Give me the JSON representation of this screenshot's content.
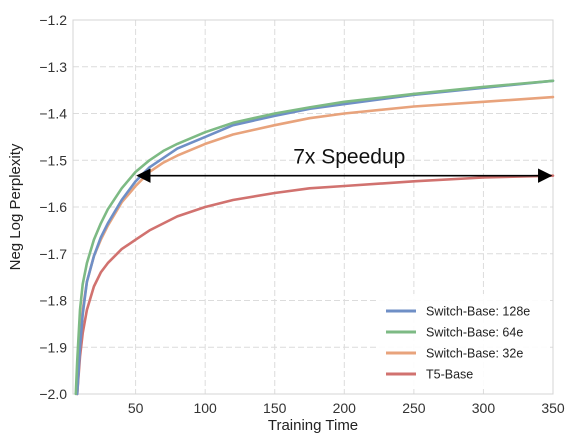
{
  "chart_data": {
    "type": "line",
    "xlabel": "Training Time",
    "ylabel": "Neg Log Perplexity",
    "xlim": [
      5,
      350
    ],
    "ylim": [
      -2.0,
      -1.2
    ],
    "xticks": [
      50,
      100,
      150,
      200,
      250,
      300,
      350
    ],
    "yticks": [
      -2.0,
      -1.9,
      -1.8,
      -1.7,
      -1.6,
      -1.5,
      -1.4,
      -1.3,
      -1.2
    ],
    "ytick_labels": [
      "−2.0",
      "−1.9",
      "−1.8",
      "−1.7",
      "−1.6",
      "−1.5",
      "−1.4",
      "−1.3",
      "−1.2"
    ],
    "grid": true,
    "legend_position": "bottom-right",
    "series": [
      {
        "name": "Switch-Base: 128e",
        "color": "#6f8fc6",
        "x": [
          8,
          10,
          12,
          15,
          20,
          25,
          30,
          40,
          50,
          60,
          70,
          80,
          100,
          120,
          150,
          175,
          200,
          250,
          300,
          350
        ],
        "y": [
          -2.0,
          -1.9,
          -1.83,
          -1.76,
          -1.705,
          -1.665,
          -1.635,
          -1.585,
          -1.545,
          -1.515,
          -1.495,
          -1.475,
          -1.45,
          -1.425,
          -1.405,
          -1.39,
          -1.38,
          -1.36,
          -1.345,
          -1.33
        ]
      },
      {
        "name": "Switch-Base: 64e",
        "color": "#7dba84",
        "x": [
          7,
          8,
          10,
          12,
          15,
          20,
          25,
          30,
          40,
          50,
          60,
          70,
          80,
          100,
          120,
          150,
          175,
          200,
          250,
          300,
          350
        ],
        "y": [
          -2.0,
          -1.93,
          -1.82,
          -1.765,
          -1.72,
          -1.67,
          -1.635,
          -1.605,
          -1.56,
          -1.525,
          -1.5,
          -1.48,
          -1.465,
          -1.44,
          -1.42,
          -1.4,
          -1.387,
          -1.375,
          -1.358,
          -1.343,
          -1.33
        ]
      },
      {
        "name": "Switch-Base: 32e",
        "color": "#e8a37c",
        "x": [
          8,
          10,
          12,
          15,
          20,
          25,
          30,
          40,
          50,
          60,
          70,
          80,
          100,
          120,
          150,
          175,
          200,
          250,
          300,
          350
        ],
        "y": [
          -2.0,
          -1.88,
          -1.82,
          -1.76,
          -1.705,
          -1.67,
          -1.64,
          -1.59,
          -1.555,
          -1.525,
          -1.505,
          -1.49,
          -1.465,
          -1.445,
          -1.425,
          -1.41,
          -1.4,
          -1.385,
          -1.375,
          -1.365
        ]
      },
      {
        "name": "T5-Base",
        "color": "#d1726f",
        "x": [
          8,
          10,
          12,
          15,
          20,
          25,
          30,
          40,
          50,
          60,
          70,
          80,
          100,
          120,
          150,
          175,
          200,
          250,
          300,
          350
        ],
        "y": [
          -2.0,
          -1.92,
          -1.87,
          -1.82,
          -1.77,
          -1.74,
          -1.72,
          -1.69,
          -1.67,
          -1.65,
          -1.635,
          -1.62,
          -1.6,
          -1.585,
          -1.57,
          -1.56,
          -1.555,
          -1.545,
          -1.537,
          -1.533
        ]
      }
    ],
    "annotations": [
      {
        "text": "7x Speedup",
        "arrow": {
          "x_start": 50,
          "x_end": 350,
          "y": -1.533
        }
      }
    ]
  }
}
